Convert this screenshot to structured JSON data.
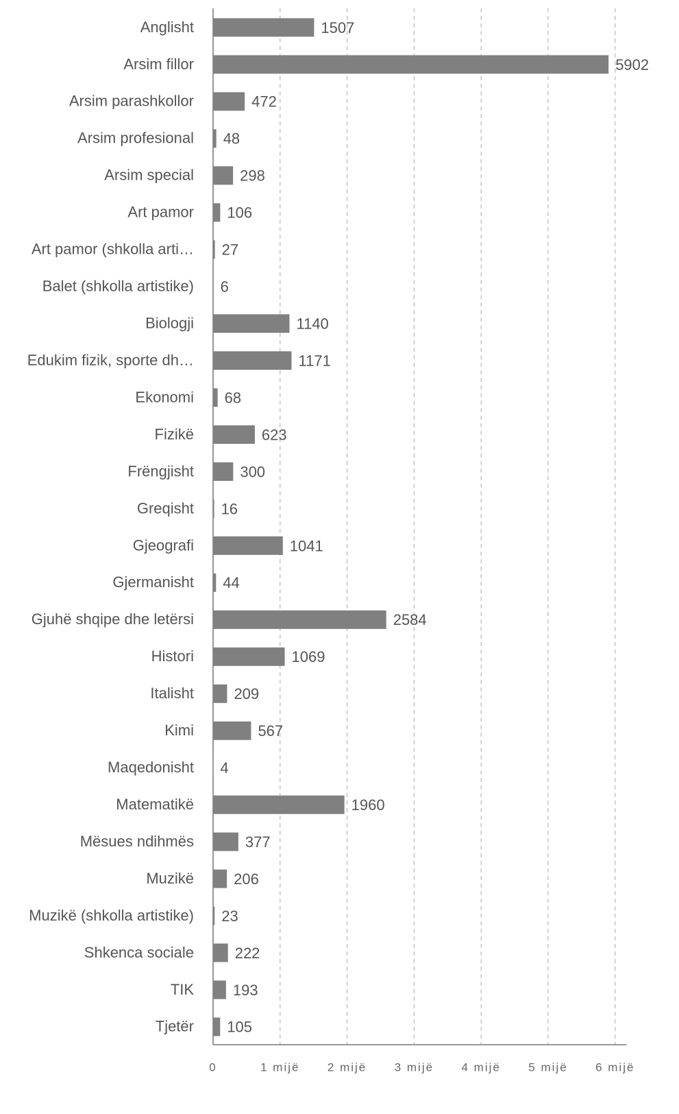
{
  "chart_data": {
    "type": "bar",
    "orientation": "horizontal",
    "categories": [
      "Anglisht",
      "Arsim fillor",
      "Arsim parashkollor",
      "Arsim profesional",
      "Arsim special",
      "Art pamor",
      "Art pamor (shkolla arti…",
      "Balet (shkolla artistike)",
      "Biologji",
      "Edukim fizik, sporte dh…",
      "Ekonomi",
      "Fizikë",
      "Frëngjisht",
      "Greqisht",
      "Gjeografi",
      "Gjermanisht",
      "Gjuhë shqipe dhe letërsi",
      "Histori",
      "Italisht",
      "Kimi",
      "Maqedonisht",
      "Matematikë",
      "Mësues ndihmës",
      "Muzikë",
      "Muzikë (shkolla artistike)",
      "Shkenca sociale",
      "TIK",
      "Tjetër"
    ],
    "values": [
      1507,
      5902,
      472,
      48,
      298,
      106,
      27,
      6,
      1140,
      1171,
      68,
      623,
      300,
      16,
      1041,
      44,
      2584,
      1069,
      209,
      567,
      4,
      1960,
      377,
      206,
      23,
      222,
      193,
      105
    ],
    "color": "#808080",
    "xlim": [
      0,
      6170
    ],
    "xticks": [
      0,
      {
        "value": 1000,
        "label": "1 mijë"
      },
      {
        "value": 2000,
        "label": "2 mijë"
      },
      {
        "value": 3000,
        "label": "3 mijë"
      },
      {
        "value": 4000,
        "label": "4 mijë"
      },
      {
        "value": 5000,
        "label": "5 mijë"
      },
      {
        "value": 6000,
        "label": "6 mijë"
      }
    ],
    "grid": true
  }
}
